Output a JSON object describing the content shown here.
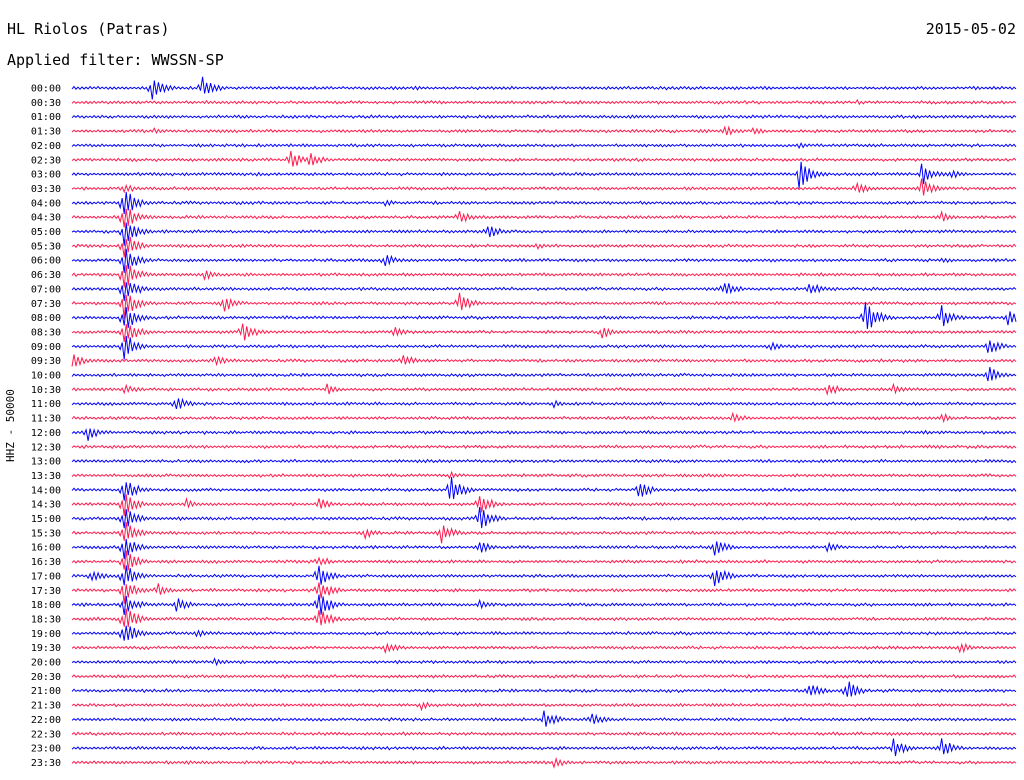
{
  "header": {
    "station": "HL Riolos (Patras)",
    "date": "2015-05-02",
    "filter": "Applied filter: WWSSN-SP"
  },
  "chart_data": {
    "type": "line",
    "subtype": "helicorder",
    "ylabel": "HHZ - 50000",
    "colors": {
      "even_hour": "#0000ff",
      "half_hour": "#ff1a4d"
    },
    "grid": false,
    "legend": "none",
    "rows": [
      {
        "label": "00:00",
        "events": [
          [
            0.083,
            14
          ],
          [
            0.138,
            12
          ],
          [
            0.36,
            3
          ]
        ]
      },
      {
        "label": "00:30",
        "events": [
          [
            0.83,
            3
          ]
        ]
      },
      {
        "label": "01:00",
        "events": []
      },
      {
        "label": "01:30",
        "events": [
          [
            0.086,
            3
          ],
          [
            0.69,
            6
          ],
          [
            0.72,
            5
          ]
        ]
      },
      {
        "label": "02:00",
        "events": [
          [
            0.77,
            3
          ]
        ]
      },
      {
        "label": "02:30",
        "events": [
          [
            0.23,
            12
          ],
          [
            0.25,
            10
          ]
        ]
      },
      {
        "label": "03:00",
        "events": [
          [
            0.77,
            16
          ],
          [
            0.9,
            12
          ],
          [
            0.93,
            6
          ]
        ]
      },
      {
        "label": "03:30",
        "events": [
          [
            0.055,
            6
          ],
          [
            0.83,
            8
          ],
          [
            0.9,
            10
          ]
        ]
      },
      {
        "label": "04:00",
        "events": [
          [
            0.055,
            16
          ],
          [
            0.33,
            4
          ]
        ]
      },
      {
        "label": "04:30",
        "events": [
          [
            0.055,
            16
          ],
          [
            0.41,
            8
          ],
          [
            0.92,
            6
          ]
        ]
      },
      {
        "label": "05:00",
        "events": [
          [
            0.055,
            16
          ],
          [
            0.44,
            8
          ]
        ]
      },
      {
        "label": "05:30",
        "events": [
          [
            0.055,
            16
          ],
          [
            0.49,
            4
          ]
        ]
      },
      {
        "label": "06:00",
        "events": [
          [
            0.055,
            16
          ],
          [
            0.33,
            8
          ],
          [
            0.92,
            4
          ]
        ]
      },
      {
        "label": "06:30",
        "events": [
          [
            0.055,
            16
          ],
          [
            0.14,
            6
          ]
        ]
      },
      {
        "label": "07:00",
        "events": [
          [
            0.055,
            16
          ],
          [
            0.69,
            10
          ],
          [
            0.78,
            8
          ]
        ]
      },
      {
        "label": "07:30",
        "events": [
          [
            0.055,
            16
          ],
          [
            0.16,
            10
          ],
          [
            0.41,
            12
          ]
        ]
      },
      {
        "label": "08:00",
        "events": [
          [
            0.055,
            16
          ],
          [
            0.84,
            18
          ],
          [
            0.92,
            14
          ],
          [
            0.99,
            10
          ]
        ]
      },
      {
        "label": "08:30",
        "events": [
          [
            0.055,
            16
          ],
          [
            0.18,
            12
          ],
          [
            0.34,
            6
          ],
          [
            0.56,
            8
          ]
        ]
      },
      {
        "label": "09:00",
        "events": [
          [
            0.055,
            16
          ],
          [
            0.74,
            6
          ],
          [
            0.97,
            10
          ]
        ]
      },
      {
        "label": "09:30",
        "events": [
          [
            0.0,
            8
          ],
          [
            0.15,
            6
          ],
          [
            0.35,
            8
          ]
        ]
      },
      {
        "label": "10:00",
        "events": [
          [
            0.97,
            10
          ]
        ]
      },
      {
        "label": "10:30",
        "events": [
          [
            0.055,
            6
          ],
          [
            0.27,
            6
          ],
          [
            0.8,
            8
          ],
          [
            0.87,
            6
          ]
        ]
      },
      {
        "label": "11:00",
        "events": [
          [
            0.11,
            8
          ],
          [
            0.51,
            4
          ]
        ]
      },
      {
        "label": "11:30",
        "events": [
          [
            0.7,
            6
          ],
          [
            0.92,
            6
          ]
        ]
      },
      {
        "label": "12:00",
        "events": [
          [
            0.015,
            10
          ]
        ]
      },
      {
        "label": "12:30",
        "events": []
      },
      {
        "label": "13:00",
        "events": []
      },
      {
        "label": "13:30",
        "events": [
          [
            0.4,
            4
          ]
        ]
      },
      {
        "label": "14:00",
        "events": [
          [
            0.055,
            14
          ],
          [
            0.4,
            16
          ],
          [
            0.6,
            10
          ]
        ]
      },
      {
        "label": "14:30",
        "events": [
          [
            0.055,
            14
          ],
          [
            0.12,
            6
          ],
          [
            0.26,
            8
          ],
          [
            0.43,
            14
          ]
        ]
      },
      {
        "label": "15:00",
        "events": [
          [
            0.055,
            14
          ],
          [
            0.43,
            16
          ]
        ]
      },
      {
        "label": "15:30",
        "events": [
          [
            0.055,
            14
          ],
          [
            0.39,
            12
          ],
          [
            0.31,
            6
          ]
        ]
      },
      {
        "label": "16:00",
        "events": [
          [
            0.055,
            14
          ],
          [
            0.43,
            8
          ],
          [
            0.68,
            10
          ],
          [
            0.8,
            6
          ]
        ]
      },
      {
        "label": "16:30",
        "events": [
          [
            0.055,
            14
          ],
          [
            0.26,
            8
          ]
        ]
      },
      {
        "label": "17:00",
        "events": [
          [
            0.02,
            8
          ],
          [
            0.055,
            14
          ],
          [
            0.26,
            14
          ],
          [
            0.68,
            12
          ]
        ]
      },
      {
        "label": "17:30",
        "events": [
          [
            0.055,
            14
          ],
          [
            0.09,
            8
          ],
          [
            0.26,
            14
          ]
        ]
      },
      {
        "label": "18:00",
        "events": [
          [
            0.055,
            14
          ],
          [
            0.11,
            8
          ],
          [
            0.26,
            18
          ],
          [
            0.43,
            6
          ]
        ]
      },
      {
        "label": "18:30",
        "events": [
          [
            0.055,
            14
          ],
          [
            0.26,
            14
          ]
        ]
      },
      {
        "label": "19:00",
        "events": [
          [
            0.055,
            14
          ],
          [
            0.13,
            6
          ]
        ]
      },
      {
        "label": "19:30",
        "events": [
          [
            0.33,
            8
          ],
          [
            0.94,
            6
          ]
        ]
      },
      {
        "label": "20:00",
        "events": [
          [
            0.15,
            4
          ]
        ]
      },
      {
        "label": "20:30",
        "events": []
      },
      {
        "label": "21:00",
        "events": [
          [
            0.78,
            10
          ],
          [
            0.82,
            12
          ]
        ]
      },
      {
        "label": "21:30",
        "events": [
          [
            0.37,
            5
          ]
        ]
      },
      {
        "label": "22:00",
        "events": [
          [
            0.5,
            10
          ],
          [
            0.55,
            8
          ]
        ]
      },
      {
        "label": "22:30",
        "events": [
          [
            0.35,
            3
          ]
        ]
      },
      {
        "label": "23:00",
        "events": [
          [
            0.87,
            10
          ],
          [
            0.92,
            12
          ]
        ]
      },
      {
        "label": "23:30",
        "events": [
          [
            0.51,
            6
          ]
        ]
      }
    ]
  }
}
